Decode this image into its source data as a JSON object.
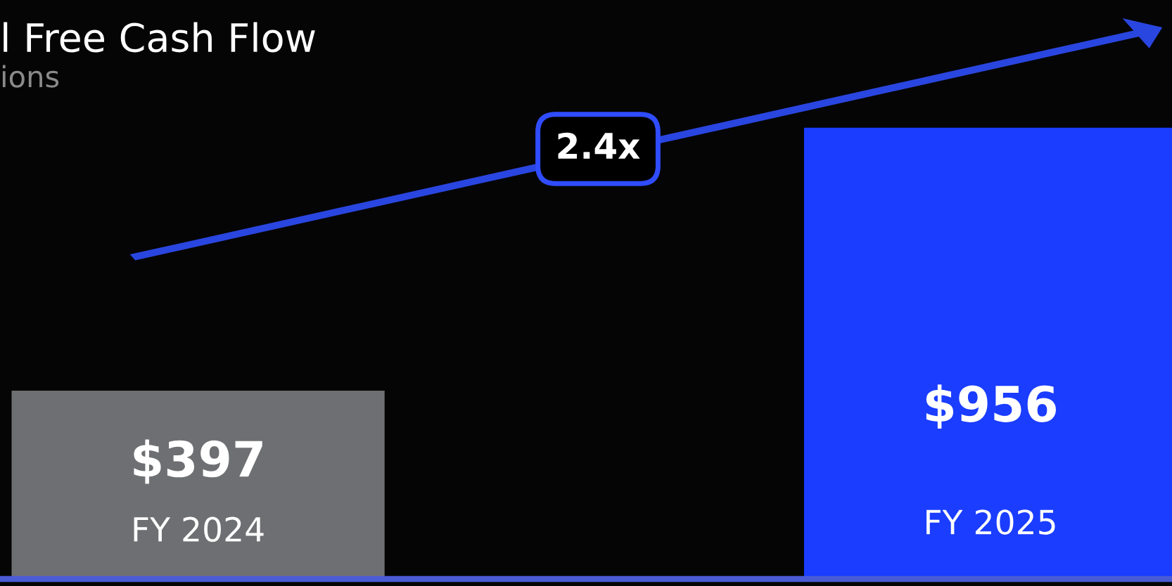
{
  "chart_data": {
    "type": "bar",
    "title": "l Free Cash Flow",
    "subtitle": "ions",
    "categories": [
      "FY 2024",
      "FY 2025"
    ],
    "values": [
      397,
      956
    ],
    "colors": [
      "#6e6f72",
      "#1a3dff"
    ],
    "value_labels": [
      "$397",
      "$956"
    ],
    "annotations": [
      "2.4x"
    ]
  }
}
